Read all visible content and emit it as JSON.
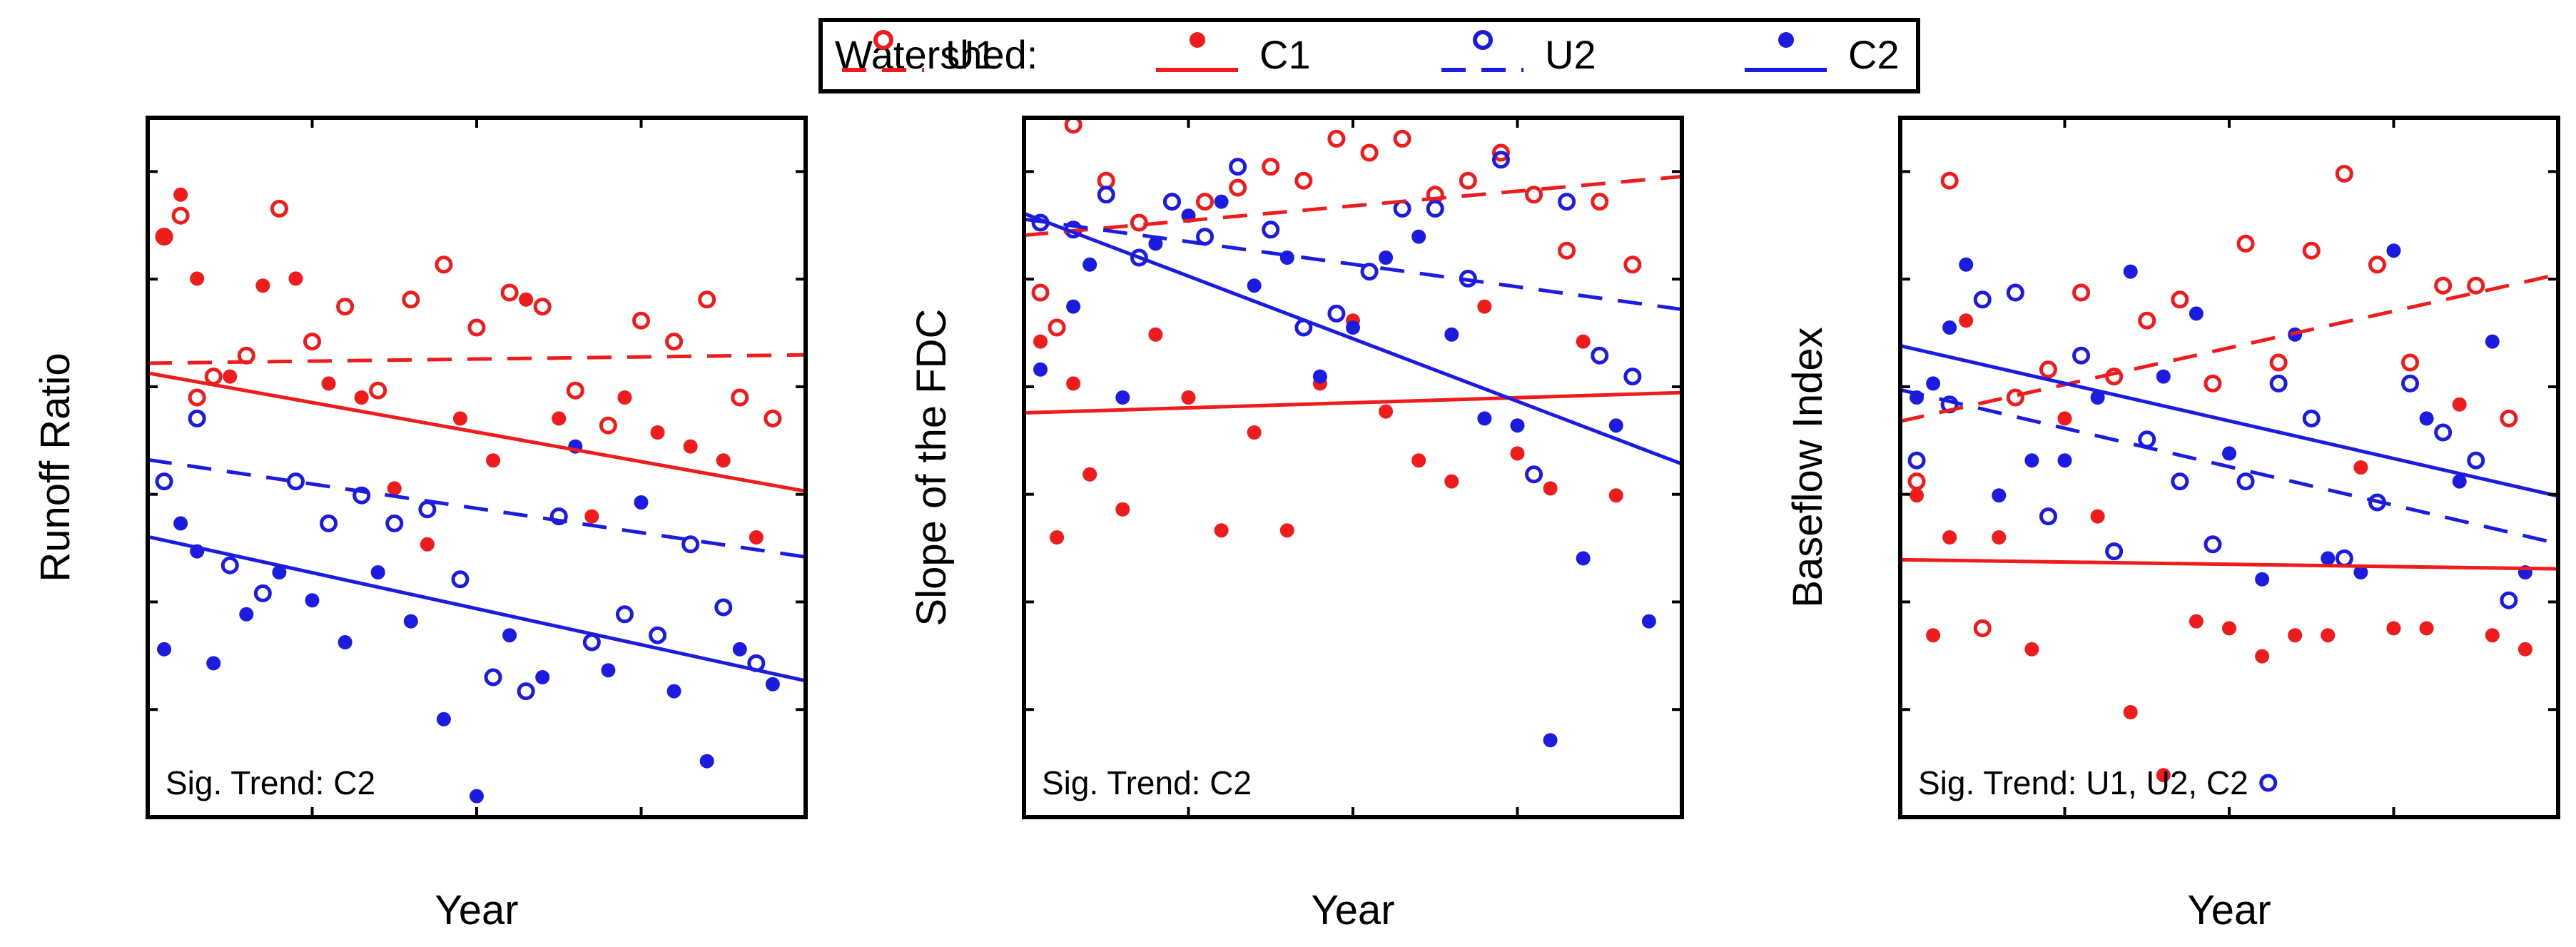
{
  "legend": {
    "title": "Watershed:",
    "entries": [
      {
        "label": "U1",
        "color": "#ee1c1c",
        "marker": "open-circle",
        "line": "dashed"
      },
      {
        "label": "C1",
        "color": "#ee1c1c",
        "marker": "filled-dot",
        "line": "solid"
      },
      {
        "label": "U2",
        "color": "#1c1ce0",
        "marker": "open-circle",
        "line": "dashed"
      },
      {
        "label": "C2",
        "color": "#1c1ce0",
        "marker": "filled-dot",
        "line": "solid"
      }
    ]
  },
  "chart_data": [
    {
      "type": "scatter",
      "title": "",
      "xlabel": "Year",
      "ylabel": "Runoff Ratio",
      "xlim": [
        0,
        40
      ],
      "ylim": [
        0,
        100
      ],
      "x_ticks": 4,
      "y_ticks": 6,
      "annotation": {
        "text": "Sig. Trend: C2",
        "marker": null
      },
      "series": [
        {
          "name": "U1",
          "x": [
            1,
            2,
            3,
            4,
            6,
            8,
            10,
            12,
            14,
            16,
            18,
            20,
            22,
            24,
            26,
            28,
            30,
            32,
            34,
            36,
            38
          ],
          "y": [
            83,
            86,
            60,
            63,
            66,
            87,
            68,
            73,
            61,
            74,
            79,
            70,
            75,
            73,
            61,
            56,
            71,
            68,
            74,
            60,
            57
          ]
        },
        {
          "name": "C1",
          "x": [
            1,
            2,
            3,
            5,
            7,
            9,
            11,
            13,
            15,
            17,
            19,
            21,
            23,
            25,
            27,
            29,
            31,
            33,
            35,
            37
          ],
          "y": [
            83,
            89,
            77,
            63,
            76,
            77,
            62,
            60,
            47,
            39,
            57,
            51,
            74,
            57,
            43,
            60,
            55,
            53,
            51,
            40
          ]
        },
        {
          "name": "U2",
          "x": [
            1,
            3,
            5,
            7,
            9,
            11,
            13,
            15,
            17,
            19,
            21,
            23,
            25,
            27,
            29,
            31,
            33,
            35,
            37
          ],
          "y": [
            48,
            57,
            36,
            32,
            48,
            42,
            46,
            42,
            44,
            34,
            20,
            18,
            43,
            25,
            29,
            26,
            39,
            30,
            22
          ]
        },
        {
          "name": "C2",
          "x": [
            1,
            2,
            3,
            4,
            6,
            8,
            10,
            12,
            14,
            16,
            18,
            20,
            22,
            24,
            26,
            28,
            30,
            32,
            34,
            36,
            38
          ],
          "y": [
            24,
            42,
            38,
            22,
            29,
            35,
            31,
            25,
            35,
            28,
            14,
            3,
            26,
            20,
            53,
            21,
            45,
            18,
            8,
            24,
            19
          ]
        },
        {
          "name": "U1-trend",
          "x": [
            0,
            40
          ],
          "y": [
            64.9,
            66.1
          ]
        },
        {
          "name": "C1-trend",
          "x": [
            0,
            40
          ],
          "y": [
            63.5,
            46.6
          ]
        },
        {
          "name": "U2-trend",
          "x": [
            0,
            40
          ],
          "y": [
            51.1,
            37.2
          ]
        },
        {
          "name": "C2-trend",
          "x": [
            0,
            40
          ],
          "y": [
            40.1,
            19.5
          ]
        }
      ]
    },
    {
      "type": "scatter",
      "title": "",
      "xlabel": "Year",
      "ylabel": "Slope of the FDC",
      "xlim": [
        0,
        40
      ],
      "ylim": [
        0,
        100
      ],
      "x_ticks": 4,
      "y_ticks": 6,
      "annotation": {
        "text": "Sig. Trend: C2",
        "marker": null
      },
      "series": [
        {
          "name": "U1",
          "x": [
            1,
            2,
            3,
            5,
            7,
            9,
            11,
            13,
            15,
            17,
            19,
            21,
            23,
            25,
            27,
            29,
            31,
            33,
            35,
            37
          ],
          "y": [
            75,
            70,
            99,
            91,
            85,
            88,
            88,
            90,
            93,
            91,
            97,
            95,
            97,
            89,
            91,
            95,
            89,
            81,
            88,
            79
          ]
        },
        {
          "name": "C1",
          "x": [
            1,
            2,
            3,
            4,
            6,
            8,
            10,
            12,
            14,
            16,
            18,
            20,
            22,
            24,
            26,
            28,
            30,
            32,
            34,
            36
          ],
          "y": [
            68,
            40,
            62,
            49,
            44,
            69,
            60,
            41,
            55,
            41,
            62,
            71,
            58,
            51,
            48,
            73,
            52,
            47,
            68,
            46
          ]
        },
        {
          "name": "U2",
          "x": [
            1,
            3,
            5,
            7,
            9,
            11,
            13,
            15,
            17,
            19,
            21,
            23,
            25,
            27,
            29,
            31,
            33,
            35,
            37
          ],
          "y": [
            85,
            84,
            89,
            80,
            88,
            83,
            93,
            84,
            70,
            72,
            78,
            87,
            87,
            77,
            94,
            49,
            88,
            66,
            63
          ]
        },
        {
          "name": "C2",
          "x": [
            1,
            3,
            4,
            6,
            8,
            10,
            12,
            14,
            16,
            18,
            20,
            22,
            24,
            26,
            28,
            30,
            32,
            34,
            36,
            38
          ],
          "y": [
            64,
            73,
            79,
            60,
            82,
            86,
            88,
            76,
            80,
            63,
            70,
            80,
            83,
            69,
            57,
            56,
            11,
            37,
            56,
            28
          ]
        },
        {
          "name": "U1-trend",
          "x": [
            0,
            40
          ],
          "y": [
            83.2,
            91.6
          ]
        },
        {
          "name": "C1-trend",
          "x": [
            0,
            40
          ],
          "y": [
            57.8,
            60.7
          ]
        },
        {
          "name": "U2-trend",
          "x": [
            0,
            40
          ],
          "y": [
            85.5,
            72.6
          ]
        },
        {
          "name": "C2-trend",
          "x": [
            0,
            40
          ],
          "y": [
            86.3,
            50.5
          ]
        }
      ]
    },
    {
      "type": "scatter",
      "title": "",
      "xlabel": "Year",
      "ylabel": "Baseflow Index",
      "xlim": [
        0,
        40
      ],
      "ylim": [
        0,
        100
      ],
      "x_ticks": 4,
      "y_ticks": 6,
      "annotation": {
        "text": "Sig. Trend: U1, U2, C2",
        "marker": "U2"
      },
      "series": [
        {
          "name": "U1",
          "x": [
            1,
            3,
            5,
            7,
            9,
            11,
            13,
            15,
            17,
            19,
            21,
            23,
            25,
            27,
            29,
            31,
            33,
            35,
            37
          ],
          "y": [
            48,
            91,
            27,
            60,
            64,
            75,
            63,
            71,
            74,
            62,
            82,
            65,
            81,
            92,
            79,
            65,
            76,
            76,
            57
          ]
        },
        {
          "name": "C1",
          "x": [
            1,
            2,
            3,
            4,
            6,
            8,
            10,
            12,
            14,
            16,
            18,
            20,
            22,
            24,
            26,
            28,
            30,
            32,
            34,
            36,
            38
          ],
          "y": [
            46,
            26,
            40,
            71,
            40,
            24,
            57,
            43,
            15,
            6,
            28,
            27,
            23,
            26,
            26,
            50,
            27,
            27,
            59,
            26,
            24
          ]
        },
        {
          "name": "U2",
          "x": [
            1,
            3,
            5,
            7,
            9,
            11,
            13,
            15,
            17,
            19,
            21,
            23,
            25,
            27,
            29,
            31,
            33,
            35,
            37
          ],
          "y": [
            51,
            59,
            74,
            75,
            43,
            66,
            38,
            54,
            48,
            39,
            48,
            62,
            57,
            37,
            45,
            62,
            55,
            51,
            31
          ]
        },
        {
          "name": "C2",
          "x": [
            1,
            2,
            3,
            4,
            6,
            8,
            10,
            12,
            14,
            16,
            18,
            20,
            22,
            24,
            26,
            28,
            30,
            32,
            34,
            36,
            38
          ],
          "y": [
            60,
            62,
            70,
            79,
            46,
            51,
            51,
            60,
            78,
            63,
            72,
            52,
            34,
            69,
            37,
            35,
            81,
            57,
            48,
            68,
            35
          ]
        },
        {
          "name": "U1-trend",
          "x": [
            0,
            40
          ],
          "y": [
            56.6,
            77.6
          ]
        },
        {
          "name": "C1-trend",
          "x": [
            0,
            40
          ],
          "y": [
            36.8,
            35.5
          ]
        },
        {
          "name": "U2-trend",
          "x": [
            0,
            40
          ],
          "y": [
            61.1,
            39.1
          ]
        },
        {
          "name": "C2-trend",
          "x": [
            0,
            40
          ],
          "y": [
            67.4,
            45.9
          ]
        }
      ]
    }
  ]
}
